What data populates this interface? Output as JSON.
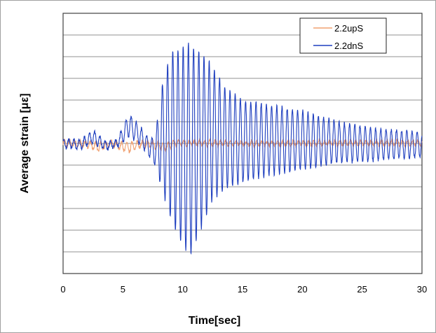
{
  "chart_data": {
    "type": "line",
    "title": "",
    "xlabel": "Time[sec]",
    "ylabel": "Average strain [με]",
    "xlim": [
      0,
      30
    ],
    "ylim": [
      -6,
      6
    ],
    "xticks": [
      0,
      5,
      10,
      15,
      20,
      25,
      30
    ],
    "xtick_labels": [
      "0",
      "5",
      "10",
      "15",
      "20",
      "25",
      "30"
    ],
    "ygrid_step": 1,
    "grid": true,
    "legend_position": "top-right",
    "series": [
      {
        "name": "2.2upS",
        "color": "#f0a070",
        "frequency_hz": 2.3,
        "envelope": [
          [
            0,
            0.15,
            -0.15
          ],
          [
            2,
            0.1,
            -0.15
          ],
          [
            3,
            0.05,
            -0.4
          ],
          [
            4,
            0.1,
            -0.1
          ],
          [
            5.5,
            0.05,
            -0.45
          ],
          [
            6.5,
            0.1,
            -0.15
          ],
          [
            7.5,
            0.1,
            -0.2
          ],
          [
            8.5,
            0.05,
            -0.35
          ],
          [
            9.5,
            0.15,
            -0.1
          ],
          [
            15,
            0.1,
            -0.1
          ],
          [
            30,
            0.15,
            -0.1
          ]
        ]
      },
      {
        "name": "2.2dnS",
        "color": "#1f3fbf",
        "frequency_hz": 2.3,
        "envelope": [
          [
            0,
            0.2,
            -0.2
          ],
          [
            1.5,
            0.15,
            -0.25
          ],
          [
            2.5,
            0.6,
            0.0
          ],
          [
            3.5,
            0.1,
            -0.3
          ],
          [
            4.5,
            0.15,
            -0.2
          ],
          [
            5.5,
            1.4,
            0.3
          ],
          [
            6.3,
            0.9,
            0.0
          ],
          [
            7.2,
            0.2,
            -0.6
          ],
          [
            7.7,
            0.3,
            -1.0
          ],
          [
            8.2,
            2.5,
            -2.0
          ],
          [
            9.0,
            4.2,
            -3.5
          ],
          [
            10.5,
            4.6,
            -5.3
          ],
          [
            11.5,
            4.2,
            -4.0
          ],
          [
            12.5,
            3.6,
            -2.6
          ],
          [
            13.5,
            2.6,
            -2.1
          ],
          [
            15,
            2.0,
            -1.8
          ],
          [
            17,
            1.8,
            -1.5
          ],
          [
            20,
            1.5,
            -1.2
          ],
          [
            23,
            1.0,
            -0.9
          ],
          [
            26,
            0.7,
            -0.8
          ],
          [
            30,
            0.5,
            -0.6
          ]
        ]
      }
    ]
  }
}
